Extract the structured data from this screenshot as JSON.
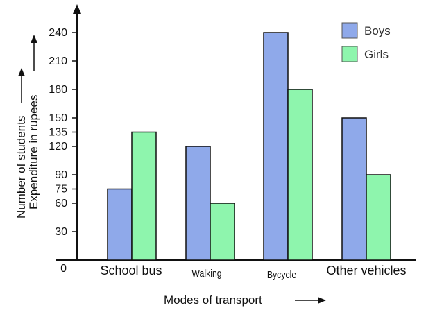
{
  "chart_data": {
    "type": "bar",
    "categories": [
      "School bus",
      "Walking",
      "Bycycle",
      "Other vehicles"
    ],
    "series": [
      {
        "name": "Boys",
        "values": [
          75,
          120,
          240,
          150
        ],
        "color": "#8fa9ea"
      },
      {
        "name": "Girls",
        "values": [
          135,
          60,
          180,
          90
        ],
        "color": "#8ef5ad"
      }
    ],
    "y_ticks": [
      30,
      60,
      75,
      90,
      120,
      135,
      150,
      180,
      210,
      240
    ],
    "origin_label": "0",
    "ylim": [
      0,
      240
    ],
    "xlabel": "Modes of transport",
    "ylabel_lines": [
      "Number of students",
      "Expenditure in rupees"
    ],
    "legend_position": "top-right",
    "grid": false
  }
}
